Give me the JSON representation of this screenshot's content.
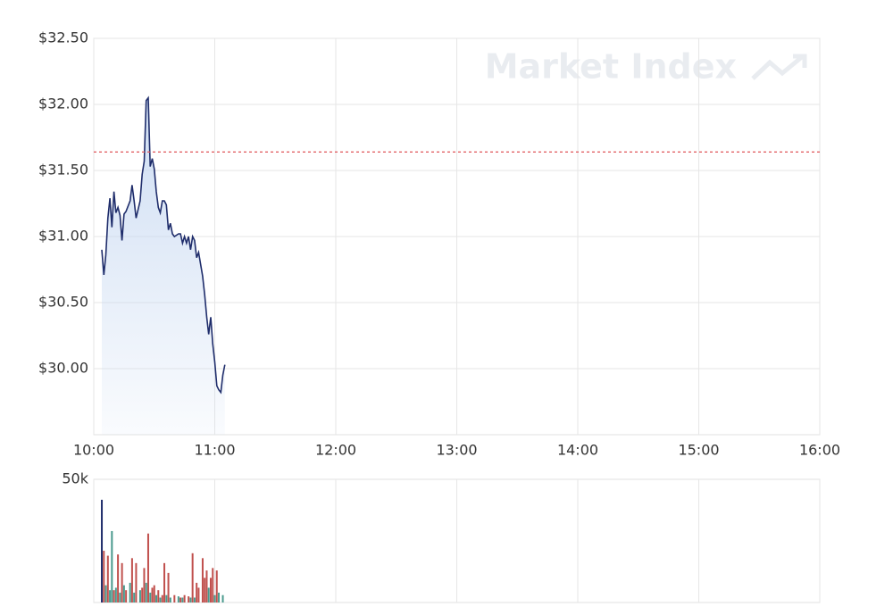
{
  "chart_data": [
    {
      "type": "line",
      "watermark": "Market Index",
      "color": "#1f2d6b",
      "fill": "#c9daf2",
      "reference_line": 31.64,
      "reference_color": "#e0555a",
      "x": [
        "10:04",
        "10:05",
        "10:06",
        "10:07",
        "10:08",
        "10:09",
        "10:10",
        "10:11",
        "10:12",
        "10:13",
        "10:14",
        "10:15",
        "10:16",
        "10:18",
        "10:19",
        "10:20",
        "10:21",
        "10:23",
        "10:24",
        "10:25",
        "10:26",
        "10:27",
        "10:28",
        "10:29",
        "10:30",
        "10:31",
        "10:32",
        "10:33",
        "10:34",
        "10:35",
        "10:36",
        "10:37",
        "10:38",
        "10:39",
        "10:40",
        "10:42",
        "10:43",
        "10:44",
        "10:45",
        "10:46",
        "10:47",
        "10:48",
        "10:49",
        "10:50",
        "10:51",
        "10:52",
        "10:54",
        "10:55",
        "10:56",
        "10:57",
        "10:58",
        "10:59",
        "11:00",
        "11:01",
        "11:02",
        "11:03",
        "11:04",
        "11:05"
      ],
      "values": [
        30.9,
        30.71,
        30.86,
        31.14,
        31.29,
        31.07,
        31.34,
        31.18,
        31.22,
        31.16,
        30.97,
        31.17,
        31.19,
        31.27,
        31.39,
        31.27,
        31.14,
        31.27,
        31.47,
        31.57,
        32.03,
        32.05,
        31.53,
        31.59,
        31.51,
        31.34,
        31.22,
        31.18,
        31.27,
        31.27,
        31.24,
        31.05,
        31.1,
        31.02,
        31.0,
        31.02,
        31.02,
        30.95,
        31.0,
        30.95,
        31.0,
        30.9,
        31.0,
        30.97,
        30.84,
        30.88,
        30.7,
        30.56,
        30.39,
        30.26,
        30.39,
        30.19,
        30.05,
        29.87,
        29.84,
        29.82,
        29.95,
        30.03
      ],
      "xlim": [
        "10:00",
        "16:00"
      ],
      "xticks": [
        "10:00",
        "11:00",
        "12:00",
        "13:00",
        "14:00",
        "15:00",
        "16:00"
      ],
      "ylim": [
        29.5,
        32.5
      ],
      "yticks": [
        {
          "value": 30,
          "label": "$30.00"
        },
        {
          "value": 30.5,
          "label": "$30.50"
        },
        {
          "value": 31,
          "label": "$31.00"
        },
        {
          "value": 31.5,
          "label": "$31.50"
        },
        {
          "value": 32,
          "label": "$32.00"
        },
        {
          "value": 32.5,
          "label": "$32.50"
        }
      ],
      "grid": true
    },
    {
      "type": "bar",
      "x": [
        "10:04",
        "10:05",
        "10:06",
        "10:07",
        "10:08",
        "10:09",
        "10:10",
        "10:11",
        "10:12",
        "10:13",
        "10:14",
        "10:15",
        "10:16",
        "10:18",
        "10:19",
        "10:20",
        "10:21",
        "10:23",
        "10:24",
        "10:25",
        "10:26",
        "10:27",
        "10:28",
        "10:29",
        "10:30",
        "10:31",
        "10:32",
        "10:33",
        "10:34",
        "10:35",
        "10:36",
        "10:37",
        "10:38",
        "10:40",
        "10:42",
        "10:43",
        "10:44",
        "10:45",
        "10:47",
        "10:48",
        "10:49",
        "10:50",
        "10:51",
        "10:52",
        "10:54",
        "10:55",
        "10:56",
        "10:57",
        "10:58",
        "10:59",
        "11:00",
        "11:01",
        "11:02",
        "11:04"
      ],
      "values": [
        41700,
        21000,
        7000,
        19000,
        5000,
        29000,
        5000,
        6000,
        19500,
        4000,
        16000,
        7000,
        5000,
        8000,
        18000,
        4000,
        16000,
        5000,
        6000,
        14000,
        8000,
        28000,
        4000,
        6000,
        7000,
        3000,
        5000,
        2000,
        3000,
        16000,
        3000,
        12000,
        2000,
        3000,
        2500,
        2000,
        2000,
        3000,
        2500,
        2000,
        20000,
        2000,
        8000,
        6000,
        18000,
        10000,
        13000,
        6000,
        10000,
        14000,
        3000,
        13000,
        4000,
        3000
      ],
      "colors": [
        "#1f2d6b",
        "#c0504d",
        "#4a9a8e",
        "#c0504d",
        "#4a9a8e",
        "#4a9a8e",
        "#c0504d",
        "#4a9a8e",
        "#c0504d",
        "#4a9a8e",
        "#c0504d",
        "#4a9a8e",
        "#c0504d",
        "#4a9a8e",
        "#c0504d",
        "#4a9a8e",
        "#c0504d",
        "#4a9a8e",
        "#c0504d",
        "#c0504d",
        "#4a9a8e",
        "#c0504d",
        "#4a9a8e",
        "#c0504d",
        "#c0504d",
        "#4a9a8e",
        "#c0504d",
        "#4a9a8e",
        "#c0504d",
        "#c0504d",
        "#4a9a8e",
        "#c0504d",
        "#4a9a8e",
        "#c0504d",
        "#4a9a8e",
        "#c0504d",
        "#4a9a8e",
        "#c0504d",
        "#c0504d",
        "#4a9a8e",
        "#c0504d",
        "#4a9a8e",
        "#c0504d",
        "#c0504d",
        "#c0504d",
        "#c0504d",
        "#c0504d",
        "#4a9a8e",
        "#c0504d",
        "#c0504d",
        "#4a9a8e",
        "#c0504d",
        "#4a9a8e",
        "#4a9a8e"
      ],
      "xlim": [
        "10:00",
        "16:00"
      ],
      "xticks": [
        "10:00",
        "11:00",
        "12:00",
        "13:00",
        "14:00",
        "15:00",
        "16:00"
      ],
      "ylim": [
        0,
        50000
      ],
      "yticks": [
        {
          "value": 50000,
          "label": "50k"
        }
      ]
    }
  ]
}
